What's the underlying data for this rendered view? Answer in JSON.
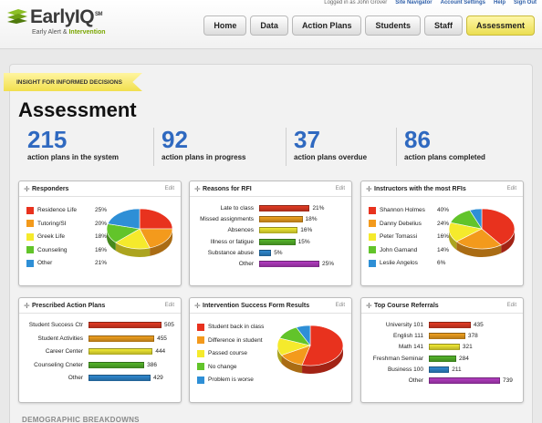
{
  "brand": {
    "name": "EarlyIQ",
    "superscript": "SM",
    "tag_a": "Early Alert & ",
    "tag_b": "Intervention"
  },
  "userbar": {
    "logged_in": "Logged in as John Grover",
    "links": [
      "Site Navigator",
      "Account Settings",
      "Help",
      "Sign Out"
    ]
  },
  "nav": [
    "Home",
    "Data",
    "Action Plans",
    "Students",
    "Staff",
    "Assessment"
  ],
  "nav_active": "Assessment",
  "ribbon": "INSIGHT FOR INFORMED DECISIONS",
  "page_title": "Assessment",
  "stats": [
    {
      "value": "215",
      "label": "action plans in the system"
    },
    {
      "value": "92",
      "label": "action plans in progress"
    },
    {
      "value": "37",
      "label": "action plans overdue"
    },
    {
      "value": "86",
      "label": "action plans completed"
    }
  ],
  "edit_label": "Edit",
  "cards": {
    "responders": {
      "title": "Responders",
      "legend": [
        {
          "name": "Residence Life",
          "pct": "25%",
          "color": "#e8321e"
        },
        {
          "name": "Tutoring/SI",
          "pct": "20%",
          "color": "#f39a1c"
        },
        {
          "name": "Greek Life",
          "pct": "18%",
          "color": "#f5ea2c"
        },
        {
          "name": "Counseling",
          "pct": "16%",
          "color": "#62c42a"
        },
        {
          "name": "Other",
          "pct": "21%",
          "color": "#2e8fd6"
        }
      ]
    },
    "reasons": {
      "title": "Reasons for RFI",
      "bars": [
        {
          "name": "Late to class",
          "value": 21,
          "label": "21%",
          "color": "#e33b24"
        },
        {
          "name": "Missed assignments",
          "value": 18,
          "label": "18%",
          "color": "#f0a020"
        },
        {
          "name": "Absences",
          "value": 16,
          "label": "16%",
          "color": "#f2ea33"
        },
        {
          "name": "Illness or fatigue",
          "value": 15,
          "label": "15%",
          "color": "#55b52b"
        },
        {
          "name": "Substance abuse",
          "value": 5,
          "label": "5%",
          "color": "#3089d0"
        },
        {
          "name": "Other",
          "value": 25,
          "label": "25%",
          "color": "#b33cc1"
        }
      ],
      "max": 25
    },
    "instructors": {
      "title": "Instructors with the most RFIs",
      "legend": [
        {
          "name": "Shannon Holmes",
          "pct": "40%",
          "color": "#e8321e"
        },
        {
          "name": "Danny Debelius",
          "pct": "24%",
          "color": "#f39a1c"
        },
        {
          "name": "Peter Tomassi",
          "pct": "16%",
          "color": "#f5ea2c"
        },
        {
          "name": "John Garnand",
          "pct": "14%",
          "color": "#62c42a"
        },
        {
          "name": "Leslie Angelos",
          "pct": "6%",
          "color": "#2e8fd6"
        }
      ]
    },
    "prescribed": {
      "title": "Prescribed Action Plans",
      "bars": [
        {
          "name": "Student Success Ctr",
          "value": 505,
          "label": "505",
          "color": "#e33b24"
        },
        {
          "name": "Student Activities",
          "value": 455,
          "label": "455",
          "color": "#f0a020"
        },
        {
          "name": "Career Center",
          "value": 444,
          "label": "444",
          "color": "#f2ea33"
        },
        {
          "name": "Counseling Cneter",
          "value": 386,
          "label": "386",
          "color": "#55b52b"
        },
        {
          "name": "Other",
          "value": 429,
          "label": "429",
          "color": "#3089d0"
        }
      ],
      "max": 505
    },
    "intervention": {
      "title": "Intervention Success Form Results",
      "legend": [
        {
          "name": "Student back in class",
          "color": "#e8321e"
        },
        {
          "name": "Difference in student",
          "color": "#f39a1c"
        },
        {
          "name": "Passed course",
          "color": "#f5ea2c"
        },
        {
          "name": "No change",
          "color": "#62c42a"
        },
        {
          "name": "Problem is worse",
          "color": "#2e8fd6"
        }
      ],
      "shares": [
        54,
        13,
        14,
        12,
        7
      ]
    },
    "referrals": {
      "title": "Top Course Referrals",
      "bars": [
        {
          "name": "University 101",
          "value": 435,
          "label": "435",
          "color": "#e33b24"
        },
        {
          "name": "English 111",
          "value": 378,
          "label": "378",
          "color": "#f0a020"
        },
        {
          "name": "Math 141",
          "value": 321,
          "label": "321",
          "color": "#f2ea33"
        },
        {
          "name": "Freshman Seminar",
          "value": 284,
          "label": "284",
          "color": "#55b52b"
        },
        {
          "name": "Business 100",
          "value": 211,
          "label": "211",
          "color": "#3089d0"
        },
        {
          "name": "Other",
          "value": 739,
          "label": "739",
          "color": "#b33cc1"
        }
      ],
      "max": 739
    }
  },
  "section_footer": "DEMOGRAPHIC BREAKDOWNS"
}
